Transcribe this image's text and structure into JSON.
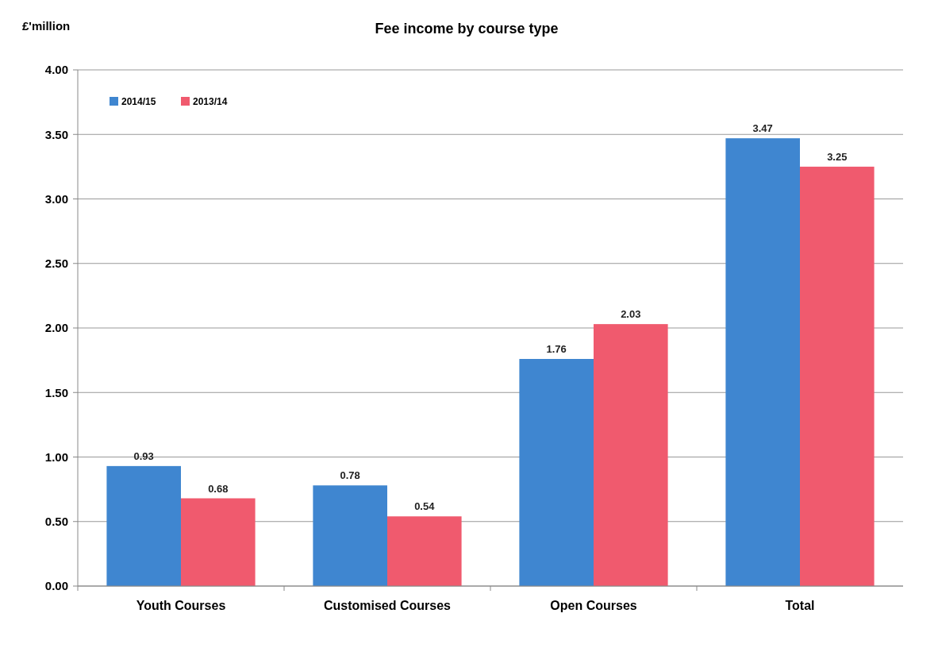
{
  "chart_data": {
    "type": "bar",
    "title": "Fee income by course type",
    "ylabel": "£'million",
    "categories": [
      "Youth Courses",
      "Customised Courses",
      "Open Courses",
      "Total"
    ],
    "series": [
      {
        "name": "2014/15",
        "color": "#3f86d0",
        "values": [
          0.93,
          0.78,
          1.76,
          3.47
        ]
      },
      {
        "name": "2013/14",
        "color": "#f05a6e",
        "values": [
          0.68,
          0.54,
          2.03,
          3.25
        ]
      }
    ],
    "ylim": [
      0,
      4
    ],
    "yticks": [
      {
        "value": 0,
        "label": "0.00"
      },
      {
        "value": 0.5,
        "label": "0.50"
      },
      {
        "value": 1,
        "label": "1.00"
      },
      {
        "value": 1.5,
        "label": "1.50"
      },
      {
        "value": 2,
        "label": "2.00"
      },
      {
        "value": 2.5,
        "label": "2.50"
      },
      {
        "value": 3,
        "label": "3.00"
      },
      {
        "value": 3.5,
        "label": "3.50"
      },
      {
        "value": 4,
        "label": "4.00"
      }
    ],
    "grid": "y",
    "legend": "top left",
    "data_labels": true
  }
}
